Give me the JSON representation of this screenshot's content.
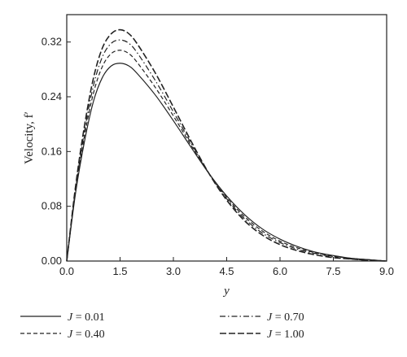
{
  "chart_data": {
    "type": "line",
    "xlabel": "y",
    "ylabel": "Velocity, f′",
    "xlim": [
      0,
      9
    ],
    "ylim": [
      0,
      0.36
    ],
    "xticks": [
      0,
      1.5,
      3,
      4.5,
      6,
      7.5,
      9
    ],
    "xtick_labels": [
      "0.0",
      "1.5",
      "3.0",
      "4.5",
      "6.0",
      "7.5",
      "9.0"
    ],
    "yticks": [
      0,
      0.08,
      0.16,
      0.24,
      0.32
    ],
    "ytick_labels": [
      "0.00",
      "0.08",
      "0.16",
      "0.24",
      "0.32"
    ],
    "grid": false,
    "legend_position": "below",
    "x": [
      0,
      0.25,
      0.5,
      0.75,
      1.0,
      1.25,
      1.5,
      1.75,
      2.0,
      2.5,
      3.0,
      3.5,
      4.0,
      4.5,
      5.0,
      5.5,
      6.0,
      6.5,
      7.0,
      7.5,
      8.0,
      8.5,
      9.0
    ],
    "series": [
      {
        "name": "J = 0.01",
        "name_parts": [
          "J",
          " = 0.01"
        ],
        "dash": "solid",
        "values": [
          0,
          0.1,
          0.175,
          0.233,
          0.268,
          0.285,
          0.289,
          0.285,
          0.273,
          0.242,
          0.205,
          0.166,
          0.128,
          0.095,
          0.068,
          0.047,
          0.032,
          0.021,
          0.013,
          0.008,
          0.004,
          0.002,
          0
        ]
      },
      {
        "name": "J = 0.40",
        "name_parts": [
          "J",
          " = 0.40"
        ],
        "dash": "dashed",
        "values": [
          0,
          0.103,
          0.183,
          0.245,
          0.284,
          0.303,
          0.308,
          0.303,
          0.289,
          0.253,
          0.212,
          0.169,
          0.128,
          0.093,
          0.065,
          0.044,
          0.029,
          0.019,
          0.012,
          0.007,
          0.004,
          0.002,
          0
        ]
      },
      {
        "name": "J = 0.70",
        "name_parts": [
          "J",
          " = 0.70"
        ],
        "dash": "dashdot",
        "values": [
          0,
          0.106,
          0.19,
          0.256,
          0.298,
          0.318,
          0.323,
          0.318,
          0.303,
          0.263,
          0.218,
          0.172,
          0.128,
          0.091,
          0.062,
          0.041,
          0.027,
          0.017,
          0.011,
          0.006,
          0.003,
          0.001,
          0
        ]
      },
      {
        "name": "J = 1.00",
        "name_parts": [
          "J",
          " = 1.00"
        ],
        "dash": "longdash",
        "values": [
          0,
          0.11,
          0.198,
          0.267,
          0.311,
          0.332,
          0.338,
          0.332,
          0.316,
          0.274,
          0.225,
          0.175,
          0.128,
          0.089,
          0.059,
          0.038,
          0.024,
          0.015,
          0.009,
          0.005,
          0.003,
          0.001,
          0
        ]
      }
    ]
  }
}
